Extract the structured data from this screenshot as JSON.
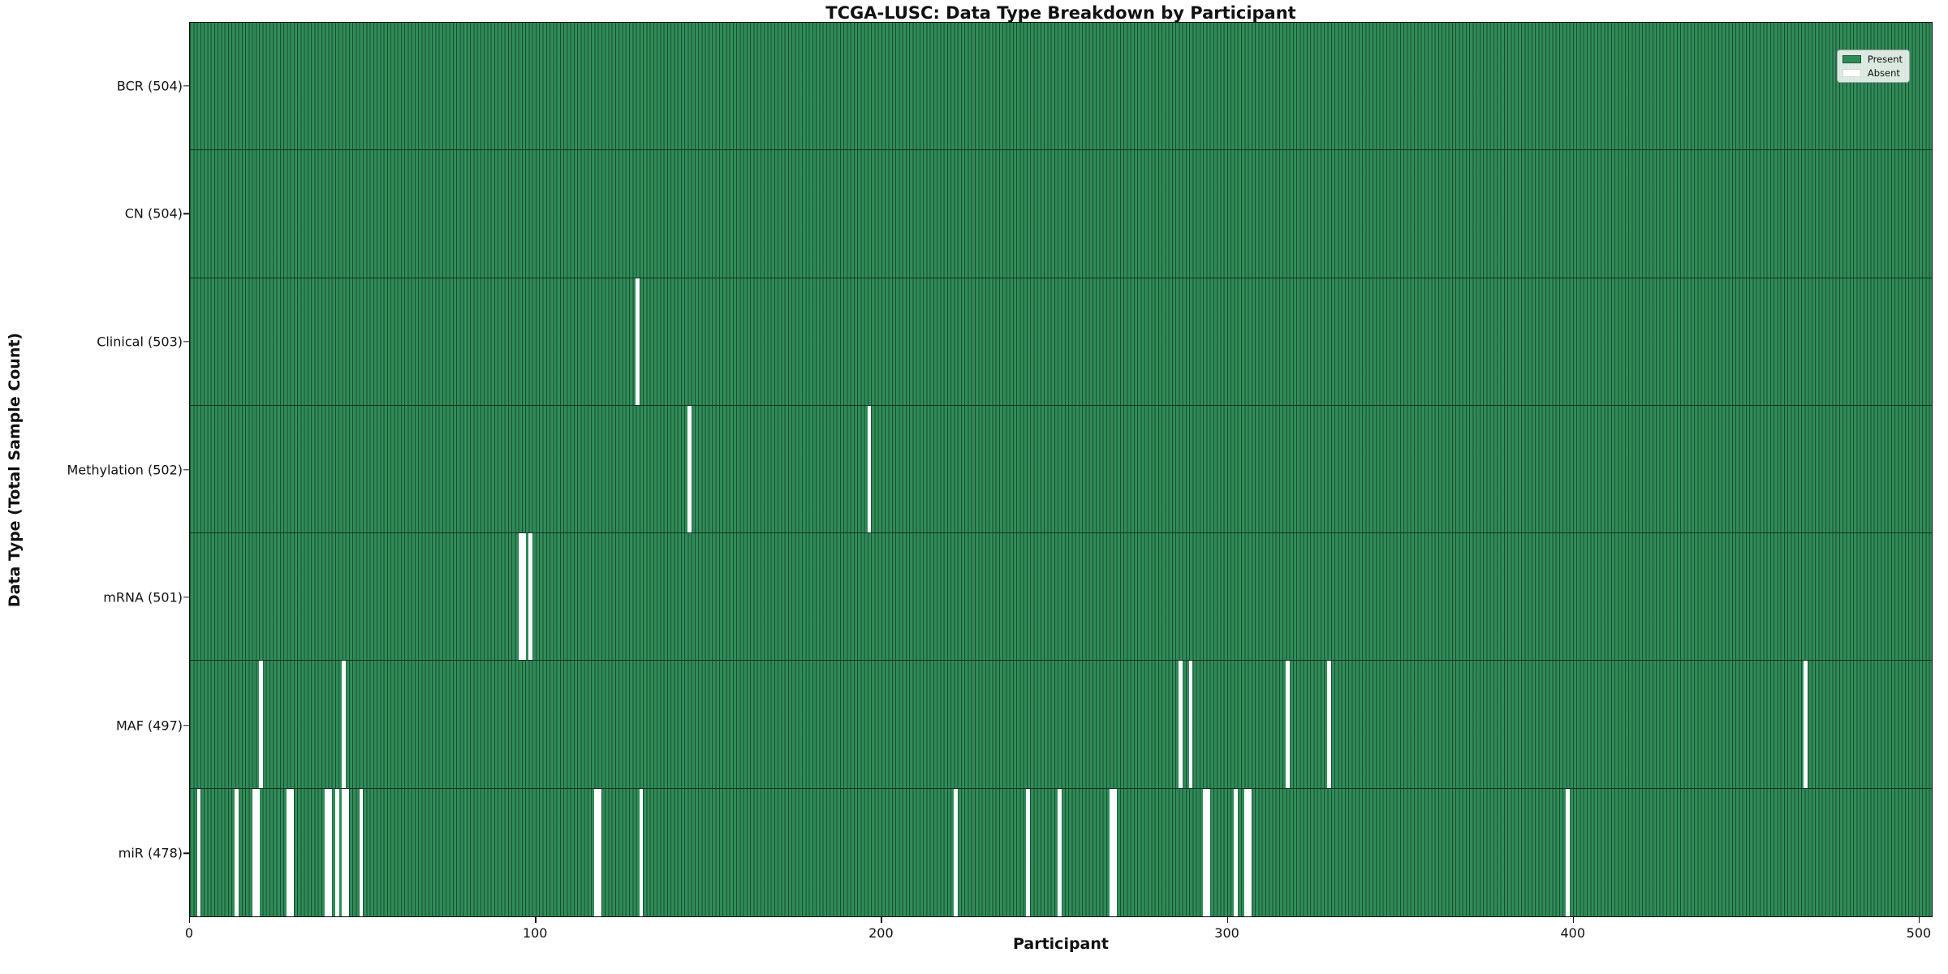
{
  "figure": {
    "title": "TCGA-LUSC: Data Type Breakdown by Participant",
    "xlabel": "Participant",
    "ylabel": "Data Type (Total Sample Count)"
  },
  "legend": {
    "present_label": "Present",
    "absent_label": "Absent"
  },
  "chart_data": {
    "type": "heatmap",
    "title": "TCGA-LUSC: Data Type Breakdown by Participant",
    "xlabel": "Participant",
    "ylabel": "Data Type (Total Sample Count)",
    "x_ticks": [
      0,
      100,
      200,
      300,
      400,
      500
    ],
    "xlim": [
      0,
      504
    ],
    "total_participants": 504,
    "grid": false,
    "legend_position": "upper right",
    "legend_entries": [
      {
        "label": "Present",
        "color": "#2e8b57"
      },
      {
        "label": "Absent",
        "color": "#ffffff"
      }
    ],
    "colors": {
      "present": "#2e8b57",
      "bar_edge": "#1b4c31",
      "absent": "#ffffff"
    },
    "rows": [
      {
        "label": "BCR (504)",
        "data_type": "BCR",
        "present_count": 504,
        "absent_participants": []
      },
      {
        "label": "CN (504)",
        "data_type": "CN",
        "present_count": 504,
        "absent_participants": []
      },
      {
        "label": "Clinical (503)",
        "data_type": "Clinical",
        "present_count": 503,
        "absent_participants": [
          129
        ]
      },
      {
        "label": "Methylation (502)",
        "data_type": "Methylation",
        "present_count": 502,
        "absent_participants": [
          144,
          196
        ]
      },
      {
        "label": "mRNA (501)",
        "data_type": "mRNA",
        "present_count": 501,
        "absent_participants": [
          95,
          96,
          98
        ]
      },
      {
        "label": "MAF (497)",
        "data_type": "MAF",
        "present_count": 497,
        "absent_participants": [
          20,
          44,
          286,
          289,
          317,
          329,
          467
        ]
      },
      {
        "label": "miR (478)",
        "data_type": "miR",
        "present_count": 478,
        "absent_participants": [
          2,
          13,
          18,
          19,
          28,
          29,
          39,
          40,
          42,
          44,
          45,
          49,
          117,
          118,
          130,
          221,
          242,
          251,
          266,
          267,
          293,
          294,
          302,
          305,
          306,
          398
        ]
      }
    ]
  }
}
